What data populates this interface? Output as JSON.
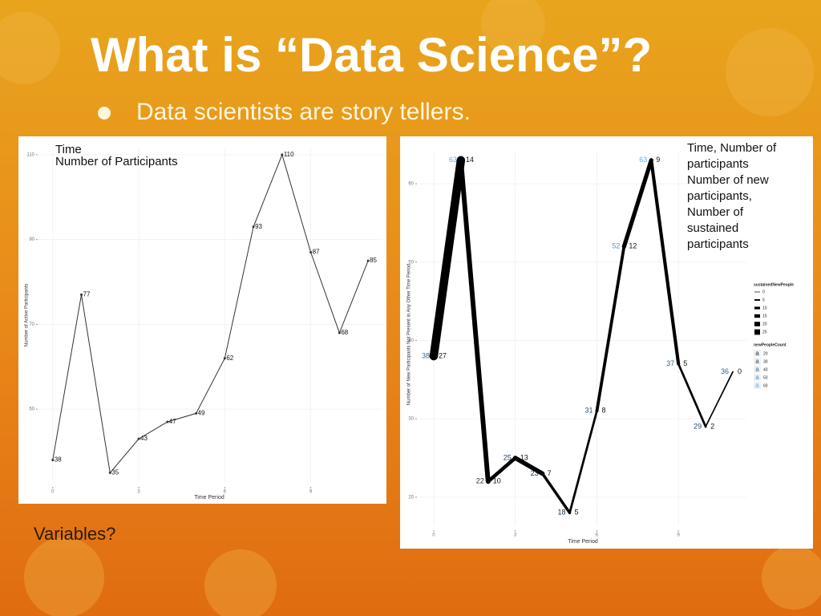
{
  "slide": {
    "title": "What is “Data Science”?",
    "bullet": "Data scientists are story tellers.",
    "note": "Variables?"
  },
  "chart_data": [
    {
      "type": "line",
      "annotation": [
        "Time",
        "Number of Participants"
      ],
      "x_label": "Time Period",
      "y_label": "Number of Active Participants",
      "x": [
        0,
        1,
        2,
        3,
        4,
        5,
        6,
        7,
        8,
        9,
        10,
        11
      ],
      "values": [
        38,
        77,
        35,
        43,
        47,
        49,
        62,
        93,
        110,
        87,
        68,
        85
      ],
      "color": "#333333",
      "xlim": [
        -1,
        11.5
      ],
      "xticks": [
        0,
        3,
        6,
        9
      ],
      "ylim": [
        33,
        111.5
      ],
      "yticks": [
        50,
        70,
        90,
        110
      ],
      "grid": true
    },
    {
      "type": "line",
      "annotation": [
        "Time, Number of",
        "participants",
        "Number of new",
        "participants,",
        "Number of",
        "sustained",
        "participants"
      ],
      "x_label": "Time Period",
      "y_label": "Number of New Participants Not Present in Any Other Time Period",
      "x": [
        0,
        1,
        2,
        3,
        4,
        5,
        6,
        7,
        8,
        9,
        10,
        11
      ],
      "values": [
        38,
        63,
        22,
        25,
        23,
        18,
        31,
        52,
        63,
        37,
        29,
        36
      ],
      "sizes": [
        27,
        14,
        10,
        13,
        7,
        5,
        8,
        12,
        9,
        5,
        2,
        0
      ],
      "color": "#000000",
      "color_range": [
        "#132b43",
        "#56b1f7"
      ],
      "size_legend": {
        "title": "sustainedNewPeople",
        "values": [
          0,
          5,
          10,
          15,
          20,
          25
        ]
      },
      "color_legend": {
        "title": "newPeopleCount",
        "symbol": "a",
        "values": [
          20,
          30,
          40,
          50,
          60
        ]
      },
      "xlim": [
        -0.5,
        11.5
      ],
      "xticks": [
        0,
        3,
        6,
        9
      ],
      "ylim": [
        16.4,
        64
      ],
      "yticks": [
        20,
        30,
        40,
        50,
        60
      ],
      "grid": true
    }
  ]
}
